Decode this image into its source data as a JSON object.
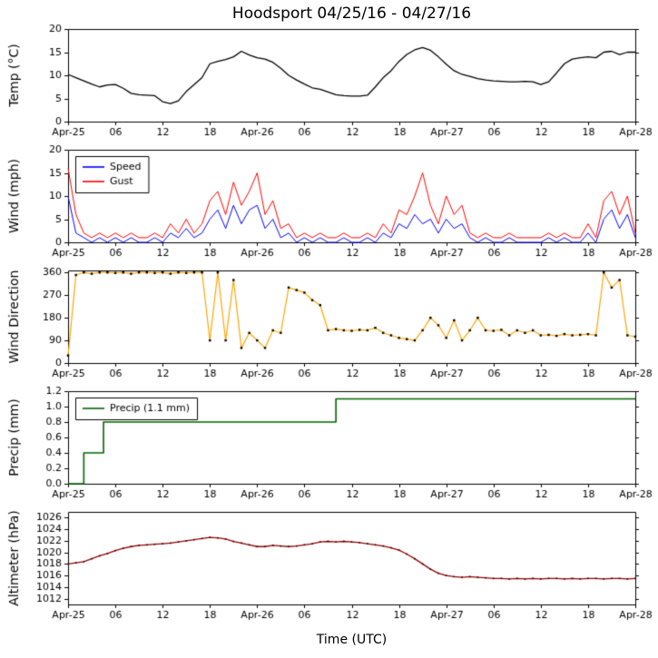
{
  "title": "Hoodsport 04/25/16 - 04/27/16",
  "xlabel": "Time (UTC)",
  "x_axis": {
    "xlim": [
      0,
      72
    ],
    "tick_hours": [
      0,
      6,
      12,
      18,
      24,
      30,
      36,
      42,
      48,
      54,
      60,
      66,
      72
    ],
    "tick_labels": [
      "Apr-25",
      "06",
      "12",
      "18",
      "Apr-26",
      "06",
      "12",
      "18",
      "Apr-27",
      "06",
      "12",
      "18",
      "Apr-28"
    ]
  },
  "chart_data": [
    {
      "type": "line",
      "ylabel": "Temp (°C)",
      "ylim": [
        0,
        20
      ],
      "yticks": [
        0,
        5,
        10,
        15,
        20
      ],
      "ytick_labels": [
        "0",
        "5",
        "10",
        "15",
        "20"
      ],
      "series": [
        {
          "name": "Temp",
          "color": "#000000",
          "width": 1.3,
          "values": [
            10.2,
            9.5,
            8.8,
            8.1,
            7.5,
            7.9,
            8.0,
            7.2,
            6.1,
            5.8,
            5.7,
            5.6,
            4.3,
            3.9,
            4.5,
            6.5,
            8.0,
            9.5,
            12.5,
            13.0,
            13.4,
            14.0,
            15.2,
            14.4,
            13.8,
            13.5,
            12.8,
            11.5,
            10.0,
            9.0,
            8.1,
            7.3,
            7.0,
            6.4,
            5.8,
            5.6,
            5.5,
            5.5,
            5.7,
            7.5,
            9.5,
            11.0,
            13.0,
            14.5,
            15.5,
            16.0,
            15.4,
            14.0,
            12.4,
            11.0,
            10.2,
            9.8,
            9.3,
            9.0,
            8.8,
            8.7,
            8.6,
            8.6,
            8.7,
            8.6,
            8.0,
            8.6,
            10.5,
            12.5,
            13.5,
            13.8,
            14.0,
            13.8,
            15.0,
            15.2,
            14.5,
            15.0,
            15.0
          ]
        }
      ]
    },
    {
      "type": "line",
      "ylabel": "Wind (mph)",
      "ylim": [
        0,
        20
      ],
      "yticks": [
        0,
        5,
        10,
        15,
        20
      ],
      "ytick_labels": [
        "0",
        "5",
        "10",
        "15",
        "20"
      ],
      "legend": {
        "entries": [
          {
            "label": "Speed",
            "color": "#0000ff"
          },
          {
            "label": "Gust",
            "color": "#ff0000"
          }
        ]
      },
      "series": [
        {
          "name": "Speed",
          "color": "#0000ff",
          "width": 1.0,
          "values": [
            10,
            2,
            1,
            0,
            1,
            0,
            1,
            0,
            1,
            0,
            0,
            1,
            0,
            2,
            1,
            3,
            1,
            2,
            5,
            7,
            3,
            8,
            4,
            7,
            8,
            3,
            5,
            1,
            2,
            0,
            1,
            0,
            1,
            0,
            0,
            1,
            0,
            0,
            1,
            0,
            2,
            1,
            4,
            3,
            6,
            4,
            5,
            2,
            5,
            3,
            4,
            1,
            0,
            1,
            0,
            0,
            1,
            0,
            0,
            0,
            0,
            1,
            0,
            1,
            0,
            0,
            2,
            0,
            5,
            7,
            3,
            6,
            1
          ]
        },
        {
          "name": "Gust",
          "color": "#ff0000",
          "width": 1.0,
          "values": [
            16,
            6,
            2,
            1,
            2,
            1,
            2,
            1,
            2,
            1,
            1,
            2,
            1,
            4,
            2,
            5,
            2,
            4,
            9,
            11,
            6,
            13,
            8,
            11,
            15,
            6,
            9,
            3,
            4,
            1,
            2,
            1,
            2,
            1,
            1,
            2,
            1,
            1,
            2,
            1,
            4,
            2,
            7,
            6,
            10,
            15,
            8,
            4,
            10,
            6,
            8,
            2,
            1,
            2,
            1,
            1,
            2,
            1,
            1,
            1,
            1,
            2,
            1,
            2,
            1,
            1,
            4,
            1,
            9,
            11,
            6,
            10,
            2
          ]
        }
      ]
    },
    {
      "type": "line",
      "ylabel": "Wind Direction",
      "ylim": [
        0,
        368
      ],
      "yticks": [
        0,
        90,
        180,
        270,
        360
      ],
      "ytick_labels": [
        "0",
        "90",
        "180",
        "270",
        "360"
      ],
      "series": [
        {
          "name": "Wind Direction",
          "color": "#ffa500",
          "width": 1.2,
          "marker": {
            "color": "#000000",
            "size": 2.4
          },
          "values": [
            30,
            350,
            360,
            355,
            360,
            360,
            358,
            360,
            355,
            360,
            360,
            358,
            360,
            355,
            360,
            358,
            360,
            360,
            90,
            360,
            90,
            330,
            60,
            120,
            90,
            60,
            130,
            120,
            300,
            290,
            280,
            250,
            230,
            130,
            135,
            130,
            128,
            132,
            130,
            140,
            120,
            110,
            100,
            95,
            90,
            130,
            180,
            150,
            100,
            170,
            90,
            130,
            180,
            130,
            128,
            132,
            110,
            130,
            120,
            130,
            110,
            112,
            108,
            115,
            110,
            112,
            115,
            110,
            360,
            300,
            330,
            110,
            105
          ]
        }
      ]
    },
    {
      "type": "line",
      "ylabel": "Precip (mm)",
      "ylim": [
        0,
        1.2
      ],
      "yticks": [
        0,
        0.2,
        0.4,
        0.6,
        0.8,
        1.0,
        1.2
      ],
      "ytick_labels": [
        "0.0",
        "0.2",
        "0.4",
        "0.6",
        "0.8",
        "1.0",
        "1.2"
      ],
      "legend": {
        "entries": [
          {
            "label": "Precip (1.1 mm)",
            "color": "#006400"
          }
        ]
      },
      "series": [
        {
          "name": "Precip",
          "color": "#006400",
          "width": 1.6,
          "x": [
            0,
            2,
            2,
            4.5,
            4.5,
            34,
            34,
            72
          ],
          "values": [
            0,
            0,
            0.4,
            0.4,
            0.8,
            0.8,
            1.1,
            1.1
          ]
        }
      ]
    },
    {
      "type": "line",
      "ylabel": "Altimeter (hPa)",
      "ylim": [
        1011,
        1027
      ],
      "yticks": [
        1012,
        1014,
        1016,
        1018,
        1020,
        1022,
        1024,
        1026
      ],
      "ytick_labels": [
        "1012",
        "1014",
        "1016",
        "1018",
        "1020",
        "1022",
        "1024",
        "1026"
      ],
      "series": [
        {
          "name": "Altimeter",
          "color": "#990000",
          "width": 1.3,
          "marker": {
            "color": "#220000",
            "size": 1.6
          },
          "values": [
            1018.0,
            1018.2,
            1018.4,
            1018.9,
            1019.4,
            1019.8,
            1020.3,
            1020.7,
            1021.0,
            1021.2,
            1021.3,
            1021.4,
            1021.5,
            1021.6,
            1021.8,
            1022.0,
            1022.2,
            1022.4,
            1022.6,
            1022.5,
            1022.3,
            1021.9,
            1021.6,
            1021.3,
            1021.0,
            1021.0,
            1021.2,
            1021.1,
            1021.0,
            1021.1,
            1021.3,
            1021.5,
            1021.8,
            1021.9,
            1021.8,
            1021.9,
            1021.8,
            1021.7,
            1021.5,
            1021.3,
            1021.1,
            1020.8,
            1020.4,
            1019.7,
            1018.9,
            1018.0,
            1017.1,
            1016.4,
            1016.0,
            1015.8,
            1015.7,
            1015.8,
            1015.7,
            1015.6,
            1015.5,
            1015.5,
            1015.4,
            1015.5,
            1015.4,
            1015.5,
            1015.4,
            1015.5,
            1015.5,
            1015.4,
            1015.5,
            1015.4,
            1015.5,
            1015.5,
            1015.4,
            1015.5,
            1015.5,
            1015.4,
            1015.5
          ]
        }
      ]
    }
  ]
}
